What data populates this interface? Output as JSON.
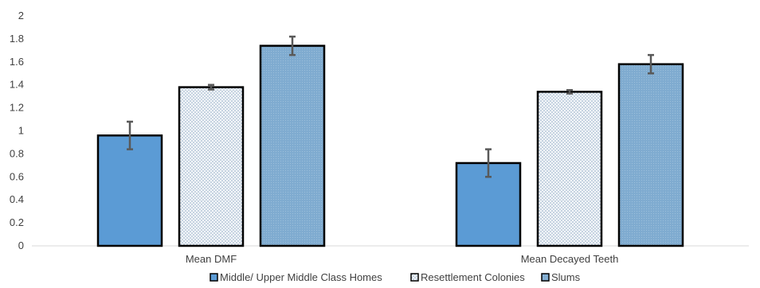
{
  "chart_data": {
    "type": "bar",
    "title": "",
    "xlabel": "",
    "ylabel": "",
    "ylim": [
      0,
      2
    ],
    "yticks": [
      0,
      0.2,
      0.4,
      0.6,
      0.8,
      1,
      1.2,
      1.4,
      1.6,
      1.8,
      2
    ],
    "ytick_labels": [
      "0",
      "0.2",
      "0.4",
      "0.6",
      "0.8",
      "1",
      "1.2",
      "1.4",
      "1.6",
      "1.8",
      "2"
    ],
    "grid": false,
    "legend_position": "bottom",
    "categories": [
      "Mean DMF",
      "Mean Decayed Teeth"
    ],
    "series": [
      {
        "name": "Middle/ Upper Middle Class Homes",
        "values": [
          0.96,
          0.72
        ],
        "error": [
          0.12,
          0.12
        ],
        "color": "#5b9bd5",
        "pattern": "solid"
      },
      {
        "name": "Resettlement Colonies",
        "values": [
          1.38,
          1.34
        ],
        "error": [
          0.02,
          0.015
        ],
        "color": "#e9eef4",
        "pattern": "dots"
      },
      {
        "name": "Slums",
        "values": [
          1.74,
          1.58
        ],
        "error": [
          0.08,
          0.08
        ],
        "color": "#7fabd0",
        "pattern": "fine-dots"
      }
    ]
  }
}
